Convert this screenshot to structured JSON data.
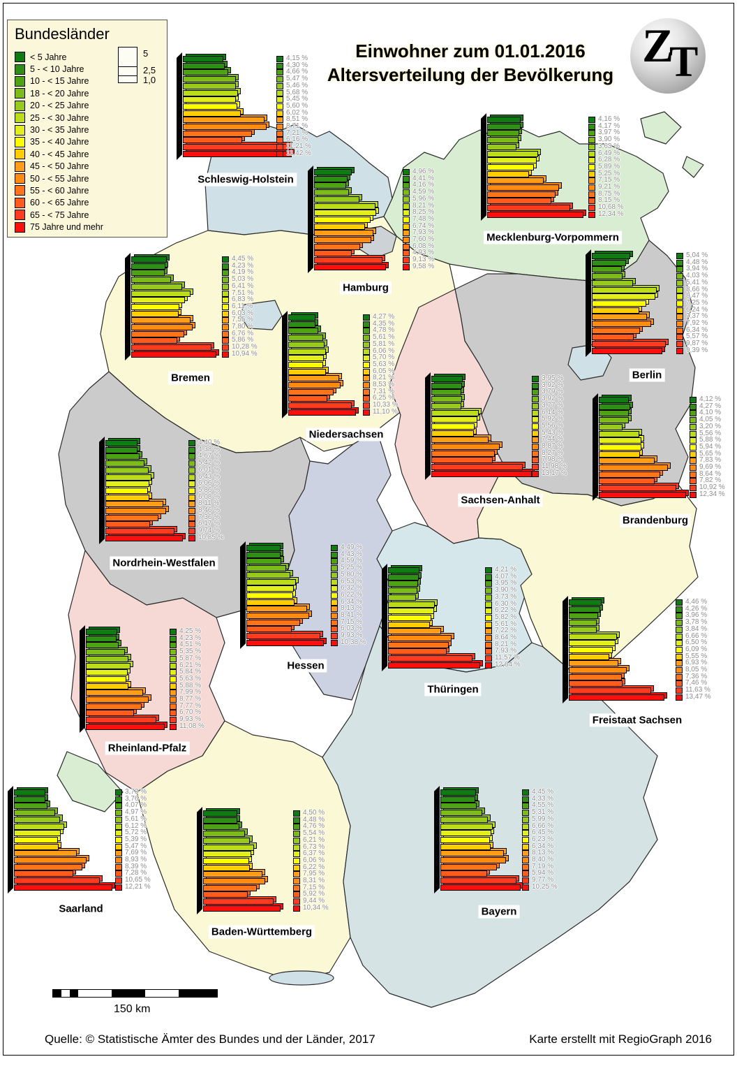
{
  "title": {
    "line1": "Einwohner zum 01.01.2016",
    "line2": "Altersverteilung der Bevölkerung"
  },
  "logo": {
    "letter1": "Z",
    "letter2": "T"
  },
  "legend": {
    "title": "Bundesländer",
    "size_scale": [
      "5",
      "2,5",
      "1,0"
    ]
  },
  "scale_bar": {
    "label": "150 km"
  },
  "footer": {
    "source": "Quelle: © Statistische Ämter des Bundes und der Länder, 2017",
    "credit": "Karte erstellt mit RegioGraph 2016"
  },
  "chart_data": {
    "type": "bar",
    "unit": "%",
    "categories": [
      "< 5 Jahre",
      "5 - < 10 Jahre",
      "10 - < 15 Jahre",
      "18 - < 20 Jahre",
      "20 - < 25 Jahre",
      "25 - < 30 Jahre",
      "30 - < 35 Jahre",
      "35 - < 40 Jahre",
      "40 - < 45 Jahre",
      "45 - < 50 Jahre",
      "50 - < 55 Jahre",
      "55 - < 60 Jahre",
      "60 - < 65 Jahre",
      "65 - < 75 Jahre",
      "75 Jahre und mehr"
    ],
    "palette": [
      "#0e7c12",
      "#2e8f17",
      "#4ea313",
      "#7cbb1a",
      "#98ca1e",
      "#bcdc17",
      "#e3ef1c",
      "#fdfd02",
      "#ffce00",
      "#ff9e16",
      "#ff8c10",
      "#ff7418",
      "#fe5b1c",
      "#fd3b1e",
      "#fb0f0c"
    ],
    "series": [
      {
        "name": "Schleswig-Holstein",
        "map_color": "#cfe0e6",
        "values": [
          4.15,
          4.3,
          4.66,
          5.47,
          5.46,
          5.68,
          5.45,
          5.6,
          6.02,
          8.51,
          8.71,
          7.21,
          6.16,
          11.21,
          11.42
        ]
      },
      {
        "name": "Mecklenburg-Vorpommern",
        "map_color": "#d9edd2",
        "values": [
          4.16,
          4.17,
          3.97,
          3.9,
          3.63,
          6.49,
          6.28,
          5.89,
          5.25,
          7.15,
          9.21,
          8.75,
          8.15,
          10.68,
          12.34
        ]
      },
      {
        "name": "Hamburg",
        "map_color": "#cdd2d6",
        "values": [
          4.96,
          4.41,
          4.16,
          4.59,
          5.96,
          8.21,
          8.25,
          7.48,
          6.74,
          7.93,
          7.6,
          6.08,
          4.93,
          9.13,
          9.58
        ]
      },
      {
        "name": "Bremen",
        "map_color": "#cfe0e6",
        "values": [
          4.45,
          4.23,
          4.19,
          5.03,
          6.41,
          7.51,
          6.83,
          6.11,
          6.03,
          7.55,
          7.8,
          6.76,
          5.86,
          10.28,
          10.94
        ]
      },
      {
        "name": "Niedersachsen",
        "map_color": "#fbf8d5",
        "values": [
          4.27,
          4.35,
          4.78,
          5.61,
          5.81,
          6.06,
          5.7,
          5.63,
          6.05,
          8.21,
          8.53,
          7.31,
          6.25,
          10.33,
          11.1
        ]
      },
      {
        "name": "Berlin",
        "map_color": "#cfe0e6",
        "values": [
          5.04,
          4.48,
          3.94,
          4.03,
          5.41,
          8.66,
          8.47,
          7.25,
          6.24,
          7.37,
          7.92,
          6.34,
          5.57,
          9.87,
          9.39
        ]
      },
      {
        "name": "Sachsen-Anhalt",
        "map_color": "#f6d8d4",
        "values": [
          3.95,
          3.92,
          3.79,
          3.92,
          3.77,
          6.14,
          5.92,
          5.56,
          5.43,
          7.44,
          8.87,
          8.27,
          7.98,
          11.98,
          13.17
        ]
      },
      {
        "name": "Brandenburg",
        "map_color": "#cbcbcb",
        "values": [
          4.12,
          4.27,
          4.1,
          4.05,
          3.2,
          5.56,
          5.88,
          5.94,
          5.65,
          7.83,
          9.69,
          8.64,
          7.82,
          10.92,
          12.34
        ]
      },
      {
        "name": "Nordrhein-Westfalen",
        "map_color": "#cbcbcb",
        "values": [
          4.4,
          4.38,
          4.67,
          5.42,
          6.01,
          6.43,
          6.06,
          5.86,
          6.08,
          8.11,
          8.46,
          7.36,
          6.17,
          9.74,
          10.85
        ]
      },
      {
        "name": "Hessen",
        "map_color": "#ccd2e2",
        "values": [
          4.49,
          4.43,
          4.59,
          5.25,
          5.8,
          6.53,
          6.32,
          6.22,
          6.34,
          8.13,
          8.41,
          7.15,
          6.03,
          9.93,
          10.38
        ]
      },
      {
        "name": "Thüringen",
        "map_color": "#d6e7eb",
        "values": [
          4.21,
          4.07,
          3.95,
          3.9,
          3.73,
          6.3,
          6.22,
          5.82,
          5.61,
          7.22,
          8.64,
          8.21,
          7.93,
          11.57,
          12.64
        ]
      },
      {
        "name": "Freistaat Sachsen",
        "map_color": "#fbf8d5",
        "values": [
          4.46,
          4.26,
          3.96,
          3.78,
          3.84,
          6.66,
          6.5,
          6.09,
          5.55,
          6.93,
          8.05,
          7.36,
          7.46,
          11.63,
          13.47
        ]
      },
      {
        "name": "Rheinland-Pfalz",
        "map_color": "#f6d8d4",
        "values": [
          4.25,
          4.23,
          4.51,
          5.35,
          5.87,
          6.21,
          5.84,
          5.63,
          5.88,
          7.99,
          8.77,
          7.77,
          6.7,
          9.93,
          11.08
        ]
      },
      {
        "name": "Saarland",
        "map_color": "#d9edd2",
        "values": [
          3.73,
          3.76,
          4.07,
          4.97,
          5.61,
          6.12,
          5.72,
          5.39,
          5.47,
          7.69,
          8.93,
          8.39,
          7.28,
          10.65,
          12.21
        ]
      },
      {
        "name": "Baden-Württemberg",
        "map_color": "#fbf8d5",
        "values": [
          4.5,
          4.48,
          4.76,
          5.54,
          6.21,
          6.73,
          6.37,
          6.06,
          6.22,
          7.95,
          8.31,
          7.15,
          5.92,
          9.44,
          10.34
        ]
      },
      {
        "name": "Bayern",
        "map_color": "#d5e3e5",
        "values": [
          4.45,
          4.33,
          4.55,
          5.31,
          5.99,
          6.66,
          6.45,
          6.23,
          6.34,
          8.13,
          8.4,
          7.19,
          5.94,
          9.77,
          10.25
        ]
      }
    ]
  }
}
